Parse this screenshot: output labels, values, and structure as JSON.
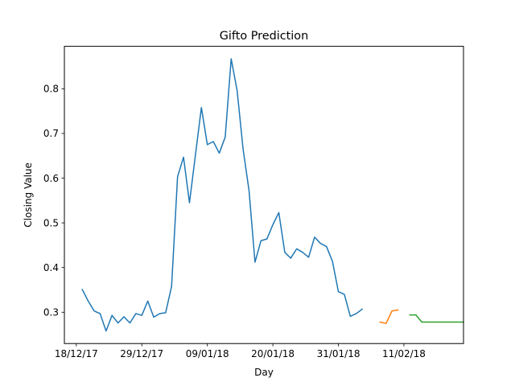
{
  "chart_data": {
    "type": "line",
    "title": "Gifto Prediction",
    "xlabel": "Day",
    "ylabel": "Closing Value",
    "x_axis": "date",
    "xlim": [
      "2017-12-16",
      "2018-02-21"
    ],
    "ylim": [
      0.23,
      0.895
    ],
    "x_ticks": [
      {
        "date": "2017-12-18",
        "label": "18/12/17"
      },
      {
        "date": "2017-12-29",
        "label": "29/12/17"
      },
      {
        "date": "2018-01-09",
        "label": "09/01/18"
      },
      {
        "date": "2018-01-20",
        "label": "20/01/18"
      },
      {
        "date": "2018-01-31",
        "label": "31/01/18"
      },
      {
        "date": "2018-02-11",
        "label": "11/02/18"
      }
    ],
    "y_ticks": [
      0.3,
      0.4,
      0.5,
      0.6,
      0.7,
      0.8
    ],
    "grid": false,
    "legend": "none",
    "series": [
      {
        "color": "#1f77b4",
        "points": [
          [
            "2017-12-19",
            0.351
          ],
          [
            "2017-12-20",
            0.325
          ],
          [
            "2017-12-21",
            0.303
          ],
          [
            "2017-12-22",
            0.297
          ],
          [
            "2017-12-23",
            0.258
          ],
          [
            "2017-12-24",
            0.293
          ],
          [
            "2017-12-25",
            0.276
          ],
          [
            "2017-12-26",
            0.29
          ],
          [
            "2017-12-27",
            0.276
          ],
          [
            "2017-12-28",
            0.297
          ],
          [
            "2017-12-29",
            0.293
          ],
          [
            "2017-12-30",
            0.325
          ],
          [
            "2017-12-31",
            0.289
          ],
          [
            "2018-01-01",
            0.297
          ],
          [
            "2018-01-02",
            0.299
          ],
          [
            "2018-01-03",
            0.358
          ],
          [
            "2018-01-04",
            0.603
          ],
          [
            "2018-01-05",
            0.647
          ],
          [
            "2018-01-06",
            0.545
          ],
          [
            "2018-01-07",
            0.652
          ],
          [
            "2018-01-08",
            0.758
          ],
          [
            "2018-01-09",
            0.675
          ],
          [
            "2018-01-10",
            0.682
          ],
          [
            "2018-01-11",
            0.656
          ],
          [
            "2018-01-12",
            0.692
          ],
          [
            "2018-01-13",
            0.867
          ],
          [
            "2018-01-14",
            0.796
          ],
          [
            "2018-01-15",
            0.665
          ],
          [
            "2018-01-16",
            0.572
          ],
          [
            "2018-01-17",
            0.412
          ],
          [
            "2018-01-18",
            0.46
          ],
          [
            "2018-01-19",
            0.464
          ],
          [
            "2018-01-20",
            0.496
          ],
          [
            "2018-01-21",
            0.523
          ],
          [
            "2018-01-22",
            0.434
          ],
          [
            "2018-01-23",
            0.421
          ],
          [
            "2018-01-24",
            0.442
          ],
          [
            "2018-01-25",
            0.434
          ],
          [
            "2018-01-26",
            0.423
          ],
          [
            "2018-01-27",
            0.468
          ],
          [
            "2018-01-28",
            0.454
          ],
          [
            "2018-01-29",
            0.447
          ],
          [
            "2018-01-30",
            0.414
          ],
          [
            "2018-01-31",
            0.346
          ],
          [
            "2018-02-01",
            0.34
          ],
          [
            "2018-02-02",
            0.291
          ],
          [
            "2018-02-03",
            0.297
          ],
          [
            "2018-02-04",
            0.307
          ]
        ]
      },
      {
        "color": "#ff7f0e",
        "points": [
          [
            "2018-02-07",
            0.278
          ],
          [
            "2018-02-08",
            0.275
          ],
          [
            "2018-02-09",
            0.303
          ],
          [
            "2018-02-10",
            0.305
          ]
        ]
      },
      {
        "color": "#2ca02c",
        "points": [
          [
            "2018-02-12",
            0.294
          ],
          [
            "2018-02-13",
            0.294
          ],
          [
            "2018-02-14",
            0.278
          ],
          [
            "2018-02-15",
            0.278
          ],
          [
            "2018-02-16",
            0.278
          ],
          [
            "2018-02-17",
            0.278
          ],
          [
            "2018-02-18",
            0.278
          ],
          [
            "2018-02-19",
            0.278
          ],
          [
            "2018-02-20",
            0.278
          ],
          [
            "2018-02-21",
            0.278
          ]
        ]
      }
    ]
  }
}
